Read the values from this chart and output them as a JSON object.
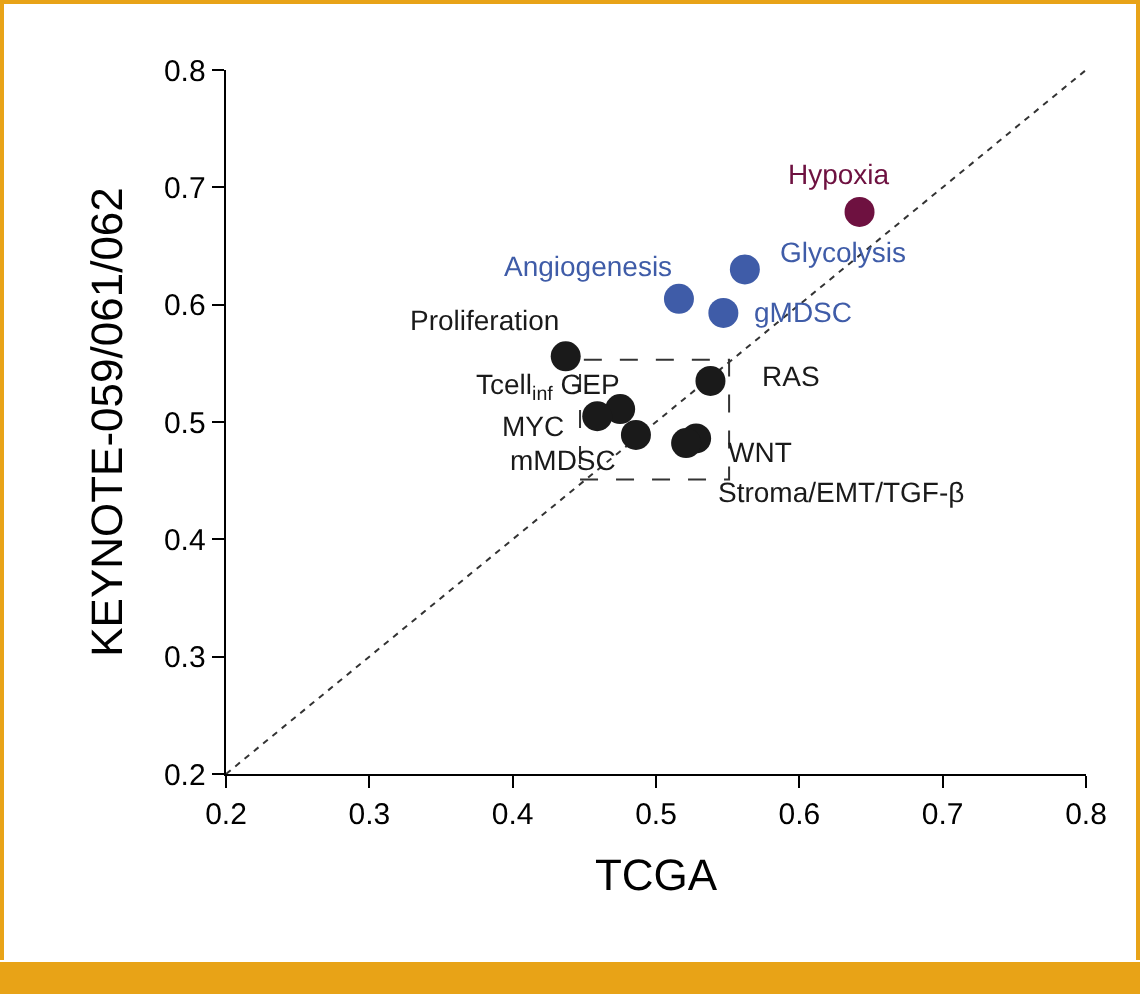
{
  "chart_data": {
    "type": "scatter",
    "xlabel": "TCGA",
    "ylabel": "KEYNOTE-059/061/062",
    "xlim": [
      0.2,
      0.8
    ],
    "ylim": [
      0.2,
      0.8
    ],
    "xticks": [
      0.2,
      0.3,
      0.4,
      0.5,
      0.6,
      0.7,
      0.8
    ],
    "yticks": [
      0.2,
      0.3,
      0.4,
      0.5,
      0.6,
      0.7,
      0.8
    ],
    "grid": false,
    "series": [
      {
        "marker": "circle",
        "x": [
          0.642,
          0.562,
          0.516,
          0.547,
          0.437,
          0.475,
          0.459,
          0.486,
          0.538,
          0.528,
          0.521
        ],
        "values": [
          0.679,
          0.63,
          0.605,
          0.593,
          0.556,
          0.511,
          0.505,
          0.489,
          0.535,
          0.486,
          0.482
        ],
        "colors": [
          "#6e1140",
          "#3f5ca8",
          "#3f5ca8",
          "#3f5ca8",
          "#1a1a1a",
          "#1a1a1a",
          "#1a1a1a",
          "#1a1a1a",
          "#1a1a1a",
          "#1a1a1a",
          "#1a1a1a"
        ]
      },
      {
        "type": "line",
        "x": [
          0.2,
          0.8
        ],
        "values": [
          0.2,
          0.8
        ],
        "color": "#333333",
        "line_style": "dotted",
        "marker": "none"
      }
    ],
    "annotations": [
      {
        "text": "Hypoxia",
        "x": 0.642,
        "y": 0.679
      },
      {
        "text": "Glycolysis",
        "x": 0.562,
        "y": 0.63
      },
      {
        "text": "Angiogenesis",
        "x": 0.516,
        "y": 0.605
      },
      {
        "text": "gMDSC",
        "x": 0.547,
        "y": 0.593
      },
      {
        "text": "Proliferation",
        "x": 0.437,
        "y": 0.556
      },
      {
        "text": "Tcell$_{inf}$ GEP",
        "x": 0.475,
        "y": 0.511
      },
      {
        "text": "MYC",
        "x": 0.459,
        "y": 0.505
      },
      {
        "text": "mMDSC",
        "x": 0.486,
        "y": 0.489
      },
      {
        "text": "RAS",
        "x": 0.538,
        "y": 0.535
      },
      {
        "text": "WNT",
        "x": 0.528,
        "y": 0.486
      },
      {
        "text": "Stroma/EMT/TGF-β",
        "x": 0.521,
        "y": 0.482
      }
    ]
  }
}
